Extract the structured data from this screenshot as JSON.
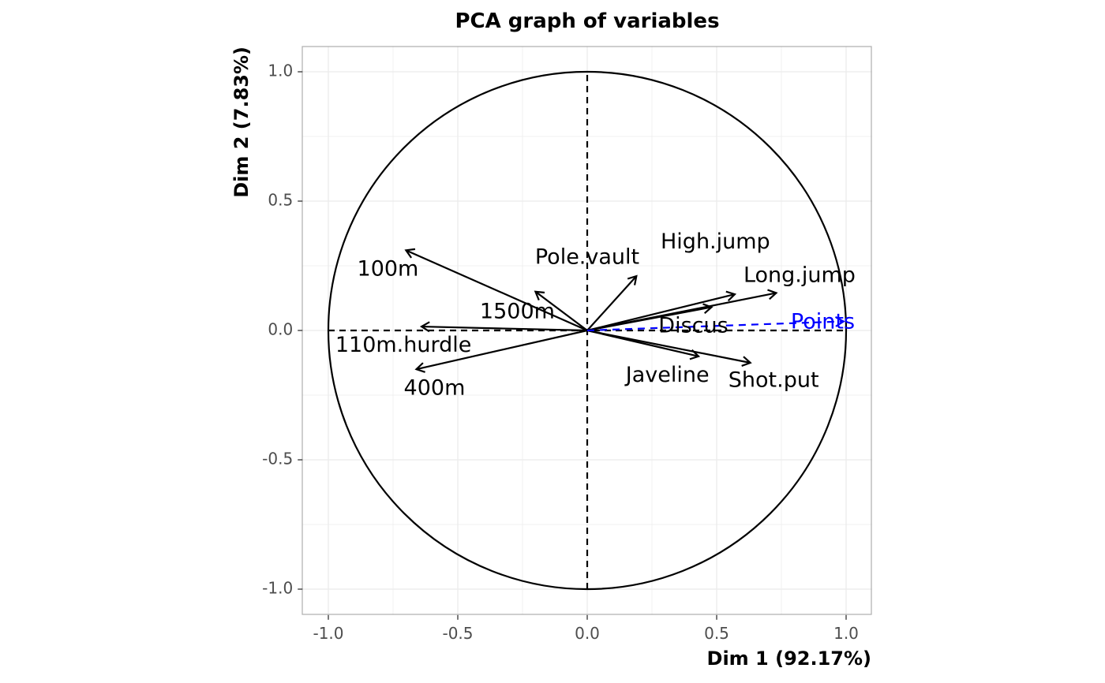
{
  "chart_data": {
    "type": "scatter",
    "subtype": "pca-correlation-circle",
    "title": "PCA graph of variables",
    "xlabel": "Dim 1 (92.17%)",
    "ylabel": "Dim 2 (7.83%)",
    "xlim": [
      -1.1,
      1.1
    ],
    "ylim": [
      -1.1,
      1.1
    ],
    "xticks": [
      -1.0,
      -0.5,
      0.0,
      0.5,
      1.0
    ],
    "xtick_labels": [
      "-1.0",
      "-0.5",
      "0.0",
      "0.5",
      "1.0"
    ],
    "yticks": [
      -1.0,
      -0.5,
      0.0,
      0.5,
      1.0
    ],
    "ytick_labels": [
      "-1.0",
      "-0.5",
      "0.0",
      "0.5",
      "1.0"
    ],
    "grid": true,
    "unit_circle": true,
    "colors": {
      "active": "#000000",
      "supplementary": "#0000ff",
      "grid": "#ebebeb",
      "panel_border": "#b3b3b3"
    },
    "variables": [
      {
        "name": "100m",
        "x": -0.7,
        "y": 0.31,
        "label_x": -0.77,
        "label_y": 0.235,
        "supplementary": false
      },
      {
        "name": "1500m",
        "x": -0.2,
        "y": 0.15,
        "label_x": -0.27,
        "label_y": 0.07,
        "supplementary": false
      },
      {
        "name": "110m.hurdle",
        "x": -0.64,
        "y": 0.015,
        "label_x": -0.71,
        "label_y": -0.06,
        "supplementary": false
      },
      {
        "name": "400m",
        "x": -0.66,
        "y": -0.15,
        "label_x": -0.59,
        "label_y": -0.225,
        "supplementary": false
      },
      {
        "name": "Pole.vault",
        "x": 0.19,
        "y": 0.21,
        "label_x": 0.0,
        "label_y": 0.28,
        "supplementary": false
      },
      {
        "name": "High.jump",
        "x": 0.57,
        "y": 0.14,
        "label_x": 0.495,
        "label_y": 0.34,
        "supplementary": false
      },
      {
        "name": "Long.jump",
        "x": 0.73,
        "y": 0.145,
        "label_x": 0.82,
        "label_y": 0.21,
        "supplementary": false
      },
      {
        "name": "Discus",
        "x": 0.48,
        "y": 0.09,
        "label_x": 0.41,
        "label_y": 0.015,
        "supplementary": false
      },
      {
        "name": "Javeline",
        "x": 0.43,
        "y": -0.1,
        "label_x": 0.31,
        "label_y": -0.175,
        "supplementary": false
      },
      {
        "name": "Shot.put",
        "x": 0.63,
        "y": -0.125,
        "label_x": 0.72,
        "label_y": -0.195,
        "supplementary": false
      },
      {
        "name": "Points",
        "x": 0.99,
        "y": 0.035,
        "label_x": 0.91,
        "label_y": 0.03,
        "supplementary": true
      }
    ]
  }
}
